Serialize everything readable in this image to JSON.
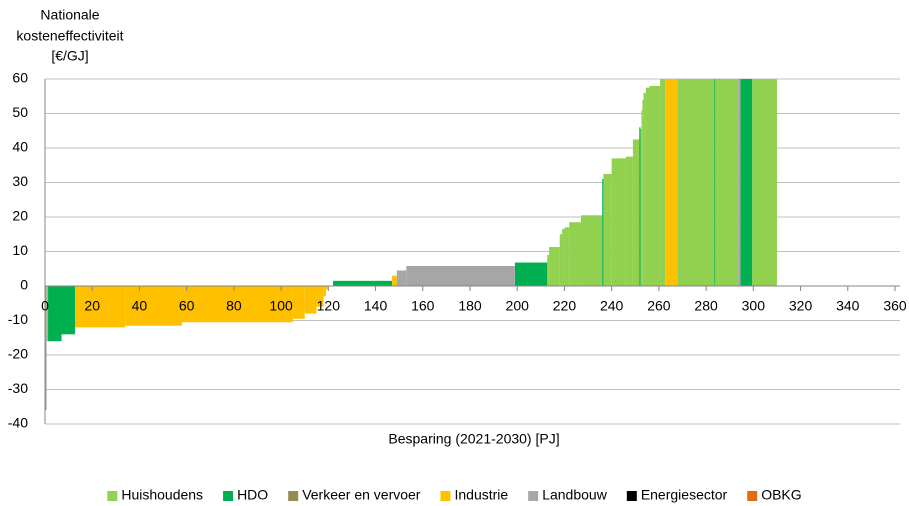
{
  "chart_data": {
    "type": "cost_curve",
    "ylabel": [
      "Nationale",
      "kosteneffectiviteit",
      "[€/GJ]"
    ],
    "xlabel": "Besparing (2021-2030) [PJ]",
    "xlim": [
      0,
      360
    ],
    "ylim": [
      -40,
      60
    ],
    "xticks": [
      0,
      20,
      40,
      60,
      80,
      100,
      120,
      140,
      160,
      180,
      200,
      220,
      240,
      260,
      280,
      300,
      320,
      340,
      360
    ],
    "yticks": [
      -40,
      -30,
      -20,
      -10,
      0,
      10,
      20,
      30,
      40,
      50,
      60
    ],
    "grid": true,
    "legend": "bottom",
    "series": [
      {
        "name": "Huishoudens",
        "color": "#92d050",
        "x_start": [
          0.7,
          212.7,
          213.5,
          218,
          219,
          220,
          222,
          227,
          236.5,
          240,
          246,
          249,
          252.2,
          252.6,
          253,
          253.5,
          254.5,
          256,
          260.5,
          267.8,
          283.8,
          299.5
        ],
        "x_end": [
          1.3,
          213.5,
          218,
          219,
          220,
          222,
          227,
          236,
          240,
          246,
          249,
          251.7,
          252.6,
          253,
          253.5,
          254.5,
          256,
          260.5,
          262.7,
          283.5,
          293.6,
          310
        ],
        "values": [
          -16,
          9,
          11.3,
          15,
          16.5,
          17,
          18.5,
          20.5,
          32.5,
          37,
          37.5,
          42.5,
          45.5,
          51,
          54,
          56,
          57.5,
          58,
          60,
          60,
          60,
          60
        ]
      },
      {
        "name": "HDO",
        "color": "#00b050",
        "x_start": [
          1.3,
          7,
          122,
          199,
          236,
          251.7,
          283.5,
          294.5
        ],
        "x_end": [
          7,
          12.7,
          147,
          212.7,
          236.5,
          252.2,
          283.8,
          299.5
        ],
        "values": [
          -16,
          -14,
          1.5,
          6.8,
          31,
          46,
          60,
          60
        ]
      },
      {
        "name": "Verkeer en vervoer",
        "color": "#948a54",
        "x_start": [],
        "x_end": [],
        "values": []
      },
      {
        "name": "Industrie",
        "color": "#ffc000",
        "x_start": [
          12.7,
          34,
          58,
          105,
          110,
          115,
          118,
          119,
          147,
          262.7
        ],
        "x_end": [
          34,
          58,
          105,
          110,
          115,
          118,
          119,
          120,
          149,
          267.8
        ],
        "values": [
          -12,
          -11.5,
          -10.5,
          -9.5,
          -8,
          -6,
          -3,
          -1,
          3,
          60
        ]
      },
      {
        "name": "Landbouw",
        "color": "#a6a6a6",
        "x_start": [
          0,
          149,
          153,
          293.6
        ],
        "x_end": [
          0.7,
          153,
          199,
          294.5
        ],
        "values": [
          -36,
          4.5,
          5.8,
          60
        ]
      },
      {
        "name": "Energiesector",
        "color": "#000000",
        "x_start": [],
        "x_end": [],
        "values": []
      },
      {
        "name": "OBKG",
        "color": "#e46c0a",
        "x_start": [],
        "x_end": [],
        "values": []
      }
    ]
  }
}
